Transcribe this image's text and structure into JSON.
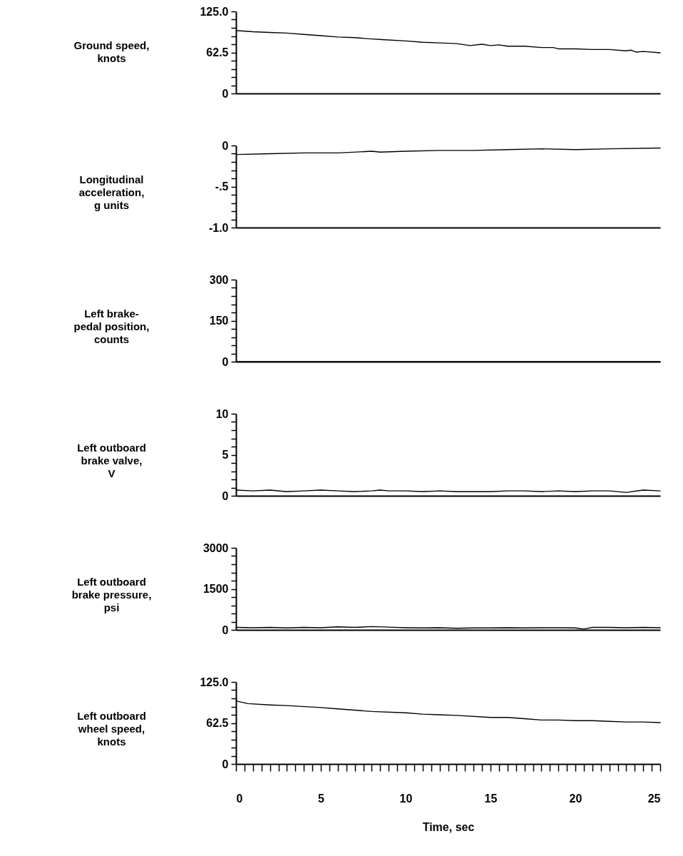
{
  "chart_data": [
    {
      "type": "line",
      "ylabel": "Ground speed,\nknots",
      "tick_labels": "y",
      "xlim": [
        0,
        25
      ],
      "ylim": [
        0,
        125
      ],
      "yticks": [
        {
          "value": 0,
          "label": "0"
        },
        {
          "value": 12.5,
          "label": null
        },
        {
          "value": 25,
          "label": null
        },
        {
          "value": 37.5,
          "label": null
        },
        {
          "value": 50,
          "label": null
        },
        62.5,
        {
          "value": 75,
          "label": null
        },
        {
          "value": 87.5,
          "label": null
        },
        {
          "value": 100,
          "label": null
        },
        {
          "value": 112.5,
          "label": null
        },
        {
          "value": 125,
          "label": "125.0"
        }
      ],
      "x": [
        0,
        1,
        2,
        3,
        4,
        5,
        6,
        7,
        8,
        8.6,
        10,
        11,
        12,
        13,
        13.8,
        14.5,
        15,
        15.5,
        16,
        17,
        18,
        18.7,
        19,
        20,
        21,
        22,
        23,
        23.3,
        23.6,
        24,
        25
      ],
      "series": [
        {
          "color": "#000000",
          "values": [
            96,
            94,
            93,
            92,
            90,
            88,
            86,
            85,
            83,
            82,
            80,
            78,
            77,
            76,
            73,
            75,
            73,
            74,
            72,
            72,
            70,
            70,
            68,
            68,
            67,
            67,
            65,
            66,
            63,
            64,
            62
          ]
        }
      ]
    },
    {
      "type": "line",
      "ylabel": "Longitudinal\nacceleration,\ng units",
      "tick_labels": "y",
      "xlim": [
        0,
        25
      ],
      "ylim": [
        -1,
        0
      ],
      "yticks": [
        {
          "value": -1,
          "label": "-1.0"
        },
        {
          "value": -0.9,
          "label": null
        },
        {
          "value": -0.8,
          "label": null
        },
        {
          "value": -0.7,
          "label": null
        },
        {
          "value": -0.6,
          "label": null
        },
        {
          "value": -0.5,
          "label": "-.5"
        },
        {
          "value": -0.4,
          "label": null
        },
        {
          "value": -0.3,
          "label": null
        },
        {
          "value": -0.2,
          "label": null
        },
        {
          "value": -0.1,
          "label": null
        },
        0
      ],
      "x": [
        0,
        2,
        4,
        6,
        8,
        8.5,
        10,
        12,
        14,
        16,
        18,
        20,
        22,
        25
      ],
      "series": [
        {
          "color": "#000000",
          "values": [
            -0.11,
            -0.1,
            -0.09,
            -0.09,
            -0.07,
            -0.08,
            -0.07,
            -0.06,
            -0.06,
            -0.05,
            -0.04,
            -0.05,
            -0.04,
            -0.03
          ]
        }
      ]
    },
    {
      "type": "line",
      "ylabel": "Left brake-\npedal position,\ncounts",
      "tick_labels": "y",
      "xlim": [
        0,
        25
      ],
      "ylim": [
        0,
        300
      ],
      "yticks": [
        0,
        {
          "value": 30,
          "label": null
        },
        {
          "value": 60,
          "label": null
        },
        {
          "value": 90,
          "label": null
        },
        {
          "value": 120,
          "label": null
        },
        150,
        {
          "value": 180,
          "label": null
        },
        {
          "value": 210,
          "label": null
        },
        {
          "value": 240,
          "label": null
        },
        {
          "value": 270,
          "label": null
        },
        300
      ],
      "x": [
        0,
        25
      ],
      "series": [
        {
          "color": "#000000",
          "values": [
            0,
            0
          ]
        }
      ]
    },
    {
      "type": "line",
      "ylabel": "Left outboard\nbrake valve,\nV",
      "tick_labels": "y",
      "xlim": [
        0,
        25
      ],
      "ylim": [
        0,
        10
      ],
      "yticks": [
        0,
        {
          "value": 1,
          "label": null
        },
        {
          "value": 2,
          "label": null
        },
        {
          "value": 3,
          "label": null
        },
        {
          "value": 4,
          "label": null
        },
        5,
        {
          "value": 6,
          "label": null
        },
        {
          "value": 7,
          "label": null
        },
        {
          "value": 8,
          "label": null
        },
        {
          "value": 9,
          "label": null
        },
        10
      ],
      "x": [
        0,
        1,
        2,
        3,
        4,
        5,
        6,
        7,
        8,
        8.5,
        9,
        10,
        11,
        12,
        13,
        14,
        15,
        16,
        17,
        18,
        19,
        20,
        21,
        22,
        23,
        24,
        25
      ],
      "series": [
        {
          "color": "#000000",
          "values": [
            0.7,
            0.6,
            0.7,
            0.5,
            0.6,
            0.7,
            0.6,
            0.5,
            0.6,
            0.7,
            0.6,
            0.6,
            0.5,
            0.6,
            0.5,
            0.5,
            0.5,
            0.6,
            0.6,
            0.5,
            0.6,
            0.5,
            0.6,
            0.6,
            0.4,
            0.7,
            0.6
          ]
        }
      ]
    },
    {
      "type": "line",
      "ylabel": "Left outboard\nbrake pressure,\npsi",
      "tick_labels": "y",
      "xlim": [
        0,
        25
      ],
      "ylim": [
        0,
        3000
      ],
      "yticks": [
        0,
        {
          "value": 300,
          "label": null
        },
        {
          "value": 600,
          "label": null
        },
        {
          "value": 900,
          "label": null
        },
        {
          "value": 1200,
          "label": null
        },
        1500,
        {
          "value": 1800,
          "label": null
        },
        {
          "value": 2100,
          "label": null
        },
        {
          "value": 2400,
          "label": null
        },
        {
          "value": 2700,
          "label": null
        },
        3000
      ],
      "x": [
        0,
        1,
        2,
        3,
        4,
        5,
        6,
        7,
        8,
        9,
        10,
        11,
        12,
        13,
        14,
        15,
        16,
        17,
        18,
        19,
        20,
        20.5,
        21,
        22,
        23,
        24,
        25
      ],
      "series": [
        {
          "color": "#000000",
          "values": [
            90,
            80,
            90,
            70,
            90,
            80,
            110,
            90,
            120,
            100,
            80,
            70,
            80,
            60,
            70,
            70,
            80,
            70,
            80,
            80,
            70,
            30,
            90,
            90,
            80,
            90,
            80
          ]
        }
      ]
    },
    {
      "type": "line",
      "ylabel": "Left outboard\nwheel speed,\nknots",
      "xlabel": "Time, sec",
      "xlim": [
        0,
        25
      ],
      "xticks": [
        0,
        {
          "value": 0.5,
          "label": null
        },
        {
          "value": 1,
          "label": null
        },
        {
          "value": 1.5,
          "label": null
        },
        {
          "value": 2,
          "label": null
        },
        {
          "value": 2.5,
          "label": null
        },
        {
          "value": 3,
          "label": null
        },
        {
          "value": 3.5,
          "label": null
        },
        {
          "value": 4,
          "label": null
        },
        {
          "value": 4.5,
          "label": null
        },
        5,
        {
          "value": 5.5,
          "label": null
        },
        {
          "value": 6,
          "label": null
        },
        {
          "value": 6.5,
          "label": null
        },
        {
          "value": 7,
          "label": null
        },
        {
          "value": 7.5,
          "label": null
        },
        {
          "value": 8,
          "label": null
        },
        {
          "value": 8.5,
          "label": null
        },
        {
          "value": 9,
          "label": null
        },
        {
          "value": 9.5,
          "label": null
        },
        10,
        {
          "value": 10.5,
          "label": null
        },
        {
          "value": 11,
          "label": null
        },
        {
          "value": 11.5,
          "label": null
        },
        {
          "value": 12,
          "label": null
        },
        {
          "value": 12.5,
          "label": null
        },
        {
          "value": 13,
          "label": null
        },
        {
          "value": 13.5,
          "label": null
        },
        {
          "value": 14,
          "label": null
        },
        {
          "value": 14.5,
          "label": null
        },
        15,
        {
          "value": 15.5,
          "label": null
        },
        {
          "value": 16,
          "label": null
        },
        {
          "value": 16.5,
          "label": null
        },
        {
          "value": 17,
          "label": null
        },
        {
          "value": 17.5,
          "label": null
        },
        {
          "value": 18,
          "label": null
        },
        {
          "value": 18.5,
          "label": null
        },
        {
          "value": 19,
          "label": null
        },
        {
          "value": 19.5,
          "label": null
        },
        20,
        {
          "value": 20.5,
          "label": null
        },
        {
          "value": 21,
          "label": null
        },
        {
          "value": 21.5,
          "label": null
        },
        {
          "value": 22,
          "label": null
        },
        {
          "value": 22.5,
          "label": null
        },
        {
          "value": 23,
          "label": null
        },
        {
          "value": 23.5,
          "label": null
        },
        {
          "value": 24,
          "label": null
        },
        {
          "value": 24.5,
          "label": null
        },
        25
      ],
      "ylim": [
        0,
        125
      ],
      "yticks": [
        {
          "value": 0,
          "label": "0"
        },
        {
          "value": 12.5,
          "label": null
        },
        {
          "value": 25,
          "label": null
        },
        {
          "value": 37.5,
          "label": null
        },
        {
          "value": 50,
          "label": null
        },
        62.5,
        {
          "value": 75,
          "label": null
        },
        {
          "value": 87.5,
          "label": null
        },
        {
          "value": 100,
          "label": null
        },
        {
          "value": 112.5,
          "label": null
        },
        {
          "value": 125,
          "label": "125.0"
        }
      ],
      "x": [
        0,
        0.7,
        2,
        3,
        5,
        6,
        7,
        8,
        10,
        11,
        12,
        13,
        15,
        16,
        17,
        18,
        19,
        20,
        21,
        22,
        23,
        24,
        25
      ],
      "series": [
        {
          "color": "#000000",
          "values": [
            96,
            92,
            90,
            89,
            86,
            84,
            82,
            80,
            78,
            76,
            75,
            74,
            71,
            71,
            69,
            67,
            67,
            66,
            66,
            65,
            64,
            64,
            63
          ]
        }
      ]
    }
  ]
}
